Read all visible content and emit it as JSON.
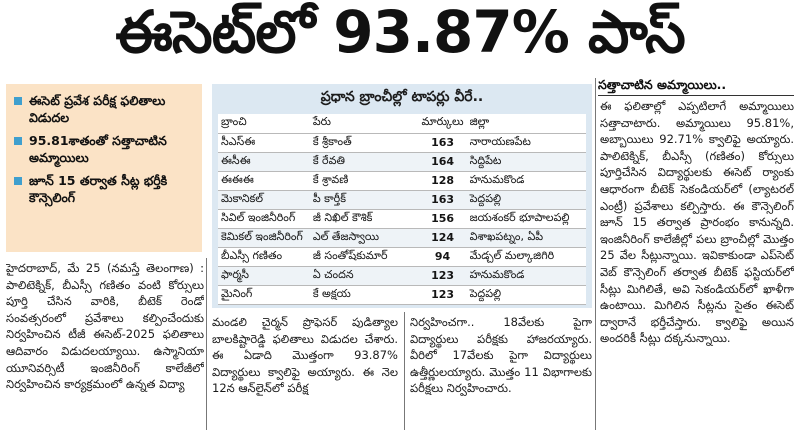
{
  "headline": "ఈసెట్‌లో 93.87% పాస్",
  "highlights": [
    "ఈసెట్ ప్రవేశ పరీక్ష ఫలితాలు విడుదల",
    "95.81శాతంతో సత్తాచాటిన అమ్మాయిలు",
    "జూన్ 15 తర్వాత సీట్ల భర్తీకి కౌన్సెలింగ్"
  ],
  "toppers": {
    "title": "ప్రధాన బ్రాంచీల్లో టాపర్లు వీరే..",
    "headers": [
      "బ్రాంచి",
      "పేరు",
      "మార్కులు",
      "జిల్లా"
    ],
    "rows": [
      [
        "సీఎస్ఈ",
        "కే శ్రీకాంత్",
        "163",
        "నారాయణపేట"
      ],
      [
        "ఈసీఈ",
        "కే రేవతి",
        "164",
        "సిద్దిపేట"
      ],
      [
        "ఈఈఈ",
        "కే శ్రావణి",
        "128",
        "హనుమకొండ"
      ],
      [
        "మెకానికల్",
        "పీ కార్తీక్",
        "163",
        "పెద్దపల్లి"
      ],
      [
        "సివిల్ ఇంజినీరింగ్",
        "జీ నిఖిల్ కౌశిక్",
        "156",
        "జయశంకర్ భూపాలపల్లి"
      ],
      [
        "కెమికల్ ఇంజినీరింగ్",
        "ఎల్ తేజస్వాయి",
        "124",
        "విశాఖపట్నం, ఏపీ"
      ],
      [
        "బీఎస్సీ గణితం",
        "జీ సంతోష్‌కుమార్",
        "94",
        "మేడ్చల్ మల్కాజిగిరి"
      ],
      [
        "ఫార్మసీ",
        "ఏ చందన",
        "123",
        "హనుమకొండ"
      ],
      [
        "మైనింగ్",
        "కే అక్షయ",
        "123",
        "పెద్దపల్లి"
      ]
    ]
  },
  "article": {
    "left": "హైదరాబాద్, మే 25 (నమస్తే తెలంగాణ) : పాలిటెక్నిక్, బీఎస్సీ గణితం వంటి కోర్సులు పూర్తి చేసిన వారికి, బీటెక్ రెండో సంవత్సరంలో ప్రవేశాలు కల్పించేందుకు నిర్వహించిన టీజీ ఈసెట్-2025 ఫలితాలు ఆదివారం విడుదలయ్యాయి. ఉస్మానియా యూనివర్సిటీ ఇంజినీరింగ్ కాలేజీలో నిర్వహించిన కార్యక్రమంలో ఉన్నత విద్యా",
    "mid1": "మండలి చైర్మన్ ప్రొఫెసర్ పుడిత్యాల బాలకిష్టారెడ్డి ఫలితాలు విడుదల చేశారు. ఈ ఏడాది మొత్తంగా 93.87% విద్యార్థులు క్వాలిఫై అయ్యారు. ఈ నెల 12న ఆన్‌లైన్‌లో పరీక్ష",
    "mid2": "నిర్వహించగా.. 18వేలకు పైగా విద్యార్థులు పరీక్షకు హాజరయ్యారు. వీరిలో 17వేలకు పైగా విద్యార్థులు ఉత్తీర్ణులయ్యారు. మొత్తం 11 విభాగాలకు పరీక్షలు నిర్వహించారు.",
    "right_heading": "సత్తాచాటిన అమ్మాయిలు..",
    "right": "ఈ ఫలితాల్లో ఎప్పటిలాగే అమ్మాయిలు సత్తాచాటారు. అమ్మాయిలు 95.81%, అబ్బాయిలు 92.71% క్వాలిఫై అయ్యారు. పాలిటెక్నిక్, బీఎస్సీ (గణితం) కోర్సులు పూర్తిచేసిన విద్యార్థులకు ఈసెట్ ర్యాంకు ఆధారంగా బీటెక్ సెకండియర్‌లో (ల్యాటరల్ ఎంట్రీ) ప్రవేశాలు కల్పిస్తారు. ఈ కౌన్సెలింగ్ జూన్ 15 తర్వాత ప్రారంభం కానున్నది. ఇంజినీరింగ్ కాలేజీల్లో పలు బ్రాంచీల్లో మొత్తం 25 వేల సీట్లున్నాయి. ఇవికాకుండా ఎప్‌సెట్ వెబ్ కౌన్సెలింగ్ తర్వాత బీటెక్ ఫస్టియర్‌లో సీట్లు మిగిలితే, అవి సెకండియర్‌లో ఖాళీగా ఉంటాయి. మిగిలిన సీట్లను సైతం ఈసెట్ ద్వారానే భర్తీచేస్తారు. క్వాలిఫై అయిన అందరికీ సీట్లు దక్కనున్నాయి."
  },
  "colors": {
    "highlight_bg": "#fbe3c6",
    "bullet": "#3f9fce",
    "table_bg": "#dce8f2"
  }
}
